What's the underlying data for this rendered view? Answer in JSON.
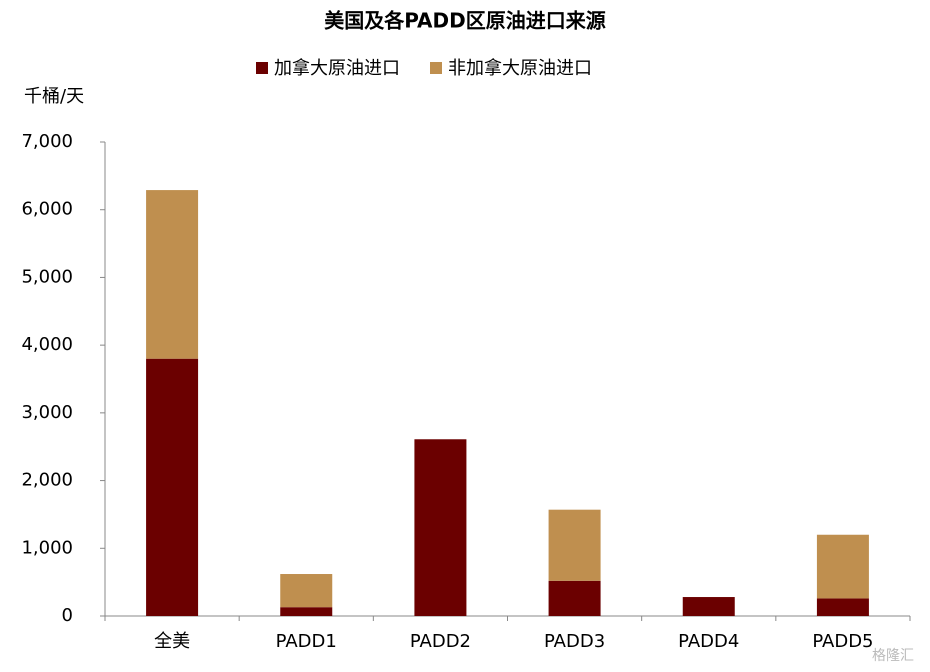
{
  "chart_data": {
    "type": "stacked-bar",
    "title": "美国及各PADD区原油进口来源",
    "y_label": "千桶/天",
    "categories": [
      "全美",
      "PADD1",
      "PADD2",
      "PADD3",
      "PADD4",
      "PADD5"
    ],
    "series": [
      {
        "name": "加拿大原油进口",
        "color": "#6b0000",
        "values": [
          3800,
          130,
          2610,
          520,
          280,
          260
        ]
      },
      {
        "name": "非加拿大原油进口",
        "color": "#bf8f4f",
        "values": [
          2490,
          490,
          0,
          1050,
          0,
          940
        ]
      }
    ],
    "ylim": [
      0,
      7000
    ],
    "yticks": [
      0,
      {
        "value": 1000,
        "label": "1,000"
      },
      {
        "value": 2000,
        "label": "2,000"
      },
      {
        "value": 3000,
        "label": "3,000"
      },
      {
        "value": 4000,
        "label": "4,000"
      },
      {
        "value": 5000,
        "label": "5,000"
      },
      {
        "value": 6000,
        "label": "6,000"
      },
      {
        "value": 7000,
        "label": "7,000"
      }
    ],
    "grid": false,
    "legend": "top",
    "watermark": "格隆汇"
  }
}
